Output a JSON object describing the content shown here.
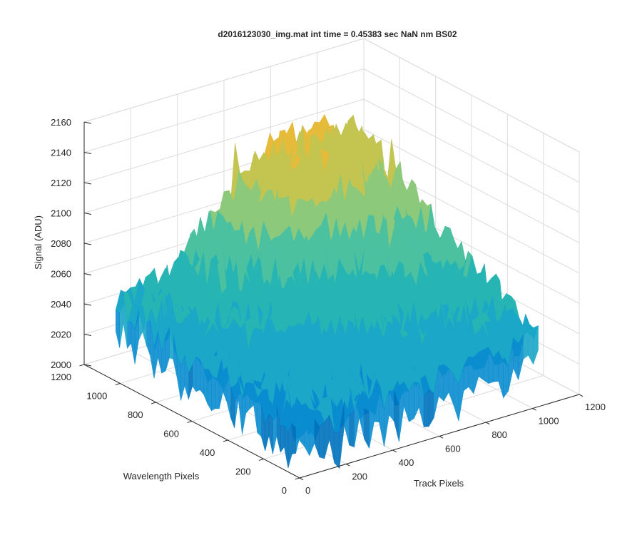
{
  "chart_data": {
    "type": "surface",
    "title": "d2016123030_img.mat int time = 0.45383 sec  NaN nm BS02",
    "xlabel": "Track Pixels",
    "ylabel": "Wavelength Pixels",
    "zlabel": "Signal (ADU)",
    "xlim": [
      0,
      1200
    ],
    "ylim": [
      0,
      1200
    ],
    "zlim": [
      2000,
      2160
    ],
    "x_ticks": [
      0,
      200,
      400,
      600,
      800,
      1000,
      1200
    ],
    "y_ticks": [
      0,
      200,
      400,
      600,
      800,
      1000,
      1200
    ],
    "z_ticks": [
      2000,
      2020,
      2040,
      2060,
      2080,
      2100,
      2120,
      2140,
      2160
    ],
    "x_tick_labels": [
      "0",
      "200",
      "400",
      "600",
      "800",
      "1000",
      "1200"
    ],
    "y_tick_labels": [
      "0",
      "200",
      "400",
      "600",
      "800",
      "1000",
      "1200"
    ],
    "z_tick_labels": [
      "2000",
      "2020",
      "2040",
      "2060",
      "2080",
      "2100",
      "2120",
      "2140",
      "2160"
    ],
    "data_extent": {
      "x": [
        0,
        1024
      ],
      "y": [
        0,
        1024
      ]
    },
    "surface_trend": {
      "corner_x0_y0": 2030,
      "corner_xmax_y0": 2045,
      "corner_x0_ymax": 2050,
      "corner_xmax_ymax": 2115,
      "peak_value": 2150,
      "min_value": 2010,
      "noise_amplitude": 12
    },
    "colormap": [
      "#0072bd",
      "#0a8cd0",
      "#1aa7c8",
      "#27b5b4",
      "#4cc1a0",
      "#8cc97a",
      "#c3c550",
      "#e7bb3a",
      "#f9c930"
    ],
    "grid": true,
    "box": true,
    "legend": "none"
  }
}
